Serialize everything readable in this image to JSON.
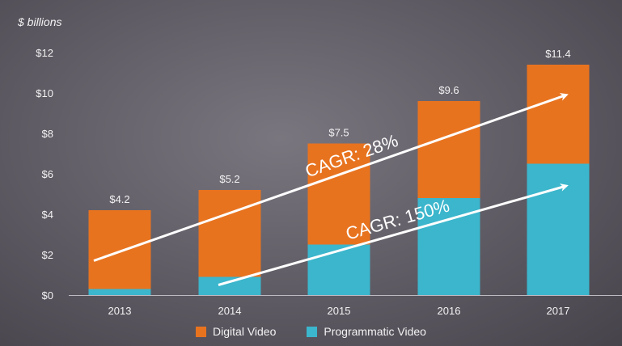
{
  "chart_data": {
    "type": "bar",
    "stacked": true,
    "ylabel": "$ billions",
    "ylim": [
      0,
      12
    ],
    "yticks": [
      "$0",
      "$2",
      "$4",
      "$6",
      "$8",
      "$10",
      "$12"
    ],
    "categories": [
      "2013",
      "2014",
      "2015",
      "2016",
      "2017"
    ],
    "series": [
      {
        "name": "Programmatic Video",
        "values": [
          0.3,
          0.9,
          2.5,
          4.8,
          6.5
        ],
        "color": "#3bb6cc"
      },
      {
        "name": "Digital Video",
        "values": [
          3.9,
          4.3,
          5.0,
          4.8,
          4.9
        ],
        "color": "#e8731f"
      }
    ],
    "totals": [
      "$4.2",
      "$5.2",
      "$7.5",
      "$9.6",
      "$11.4"
    ],
    "annotations": [
      {
        "text": "CAGR: 28%",
        "from": [
          "2013",
          1.7
        ],
        "to": [
          "2017",
          9.9
        ]
      },
      {
        "text": "CAGR: 150%",
        "from": [
          "2014",
          0.5
        ],
        "to": [
          "2017",
          5.4
        ]
      }
    ],
    "grid": false,
    "legend": "bottom"
  }
}
